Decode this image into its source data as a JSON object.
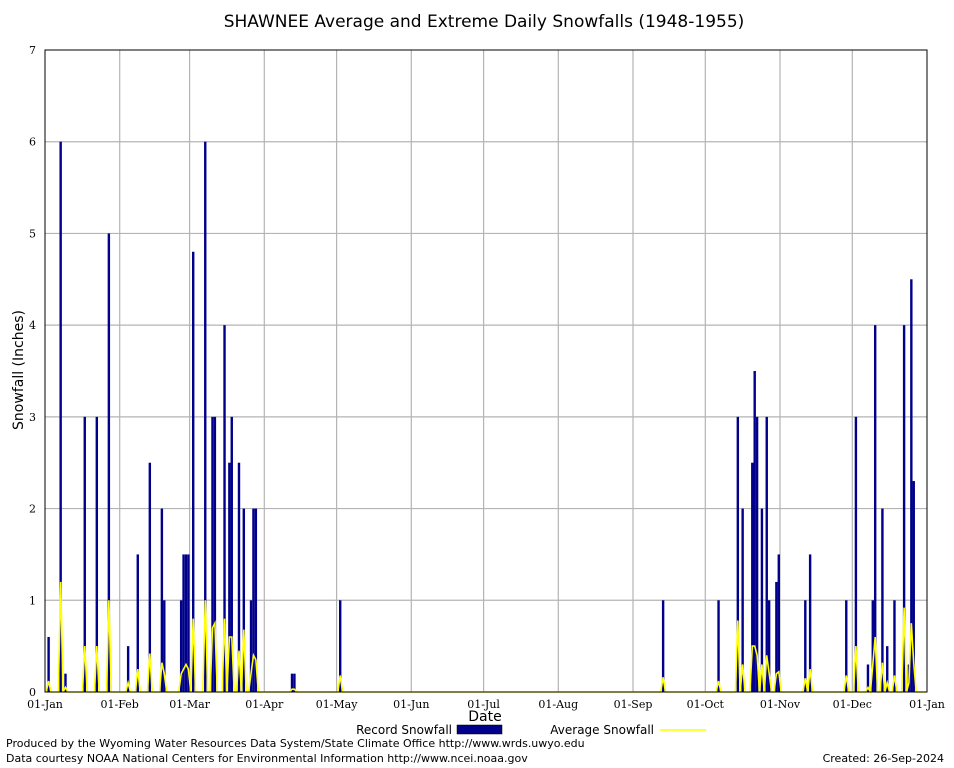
{
  "chart_data": {
    "type": "bar",
    "title": "SHAWNEE Average and Extreme Daily Snowfalls (1948-1955)",
    "xlabel": "Date",
    "ylabel": "Snowfall (Inches)",
    "ylim": [
      0,
      7
    ],
    "yticks": [
      "0",
      "1",
      "2",
      "3",
      "4",
      "5",
      "6",
      "7"
    ],
    "xlim_days": [
      1,
      366
    ],
    "xticks": [
      {
        "day": 1,
        "label": "01-Jan"
      },
      {
        "day": 32,
        "label": "01-Feb"
      },
      {
        "day": 61,
        "label": "01-Mar"
      },
      {
        "day": 92,
        "label": "01-Apr"
      },
      {
        "day": 122,
        "label": "01-May"
      },
      {
        "day": 153,
        "label": "01-Jun"
      },
      {
        "day": 183,
        "label": "01-Jul"
      },
      {
        "day": 214,
        "label": "01-Aug"
      },
      {
        "day": 245,
        "label": "01-Sep"
      },
      {
        "day": 275,
        "label": "01-Oct"
      },
      {
        "day": 306,
        "label": "01-Nov"
      },
      {
        "day": 336,
        "label": "01-Dec"
      },
      {
        "day": 367,
        "label": "01-Jan"
      }
    ],
    "grid": true,
    "legend_position": "bottom",
    "series": [
      {
        "name": "Record Snowfall",
        "style": "bar",
        "color": "#00008b",
        "points": [
          [
            2,
            0.6
          ],
          [
            7,
            6.0
          ],
          [
            9,
            0.2
          ],
          [
            17,
            3.0
          ],
          [
            22,
            3.0
          ],
          [
            27,
            5.0
          ],
          [
            35,
            0.5
          ],
          [
            39,
            1.5
          ],
          [
            44,
            2.5
          ],
          [
            49,
            2.0
          ],
          [
            50,
            1.0
          ],
          [
            57,
            1.0
          ],
          [
            58,
            1.5
          ],
          [
            59,
            1.5
          ],
          [
            60,
            1.5
          ],
          [
            62,
            4.8
          ],
          [
            67,
            6.0
          ],
          [
            70,
            3.0
          ],
          [
            71,
            3.0
          ],
          [
            75,
            4.0
          ],
          [
            77,
            2.5
          ],
          [
            78,
            3.0
          ],
          [
            81,
            2.5
          ],
          [
            83,
            2.0
          ],
          [
            86,
            1.0
          ],
          [
            87,
            2.0
          ],
          [
            88,
            2.0
          ],
          [
            103,
            0.2
          ],
          [
            104,
            0.2
          ],
          [
            123,
            1.0
          ],
          [
            257,
            1.0
          ],
          [
            280,
            1.0
          ],
          [
            288,
            3.0
          ],
          [
            290,
            2.0
          ],
          [
            294,
            2.5
          ],
          [
            295,
            3.5
          ],
          [
            296,
            3.0
          ],
          [
            298,
            2.0
          ],
          [
            300,
            3.0
          ],
          [
            301,
            1.0
          ],
          [
            304,
            1.2
          ],
          [
            305,
            1.5
          ],
          [
            316,
            1.0
          ],
          [
            318,
            1.5
          ],
          [
            333,
            1.0
          ],
          [
            337,
            3.0
          ],
          [
            342,
            0.3
          ],
          [
            344,
            1.0
          ],
          [
            345,
            4.0
          ],
          [
            348,
            2.0
          ],
          [
            350,
            0.5
          ],
          [
            353,
            1.0
          ],
          [
            357,
            4.0
          ],
          [
            359,
            0.3
          ],
          [
            360,
            4.5
          ],
          [
            361,
            2.3
          ]
        ]
      },
      {
        "name": "Average Snowfall",
        "style": "line",
        "color": "#ffff00",
        "points": [
          [
            2,
            0.12
          ],
          [
            7,
            1.2
          ],
          [
            9,
            0.05
          ],
          [
            17,
            0.5
          ],
          [
            22,
            0.5
          ],
          [
            27,
            1.0
          ],
          [
            35,
            0.1
          ],
          [
            39,
            0.25
          ],
          [
            44,
            0.42
          ],
          [
            49,
            0.32
          ],
          [
            50,
            0.2
          ],
          [
            57,
            0.2
          ],
          [
            58,
            0.25
          ],
          [
            59,
            0.3
          ],
          [
            60,
            0.25
          ],
          [
            62,
            0.8
          ],
          [
            67,
            1.0
          ],
          [
            70,
            0.7
          ],
          [
            71,
            0.75
          ],
          [
            75,
            0.8
          ],
          [
            77,
            0.6
          ],
          [
            78,
            0.6
          ],
          [
            81,
            0.45
          ],
          [
            83,
            0.68
          ],
          [
            86,
            0.2
          ],
          [
            87,
            0.4
          ],
          [
            88,
            0.35
          ],
          [
            103,
            0.03
          ],
          [
            104,
            0.03
          ],
          [
            123,
            0.18
          ],
          [
            257,
            0.16
          ],
          [
            280,
            0.12
          ],
          [
            288,
            0.78
          ],
          [
            290,
            0.3
          ],
          [
            294,
            0.5
          ],
          [
            295,
            0.5
          ],
          [
            296,
            0.4
          ],
          [
            298,
            0.3
          ],
          [
            300,
            0.4
          ],
          [
            301,
            0.2
          ],
          [
            304,
            0.2
          ],
          [
            305,
            0.22
          ],
          [
            316,
            0.15
          ],
          [
            318,
            0.25
          ],
          [
            333,
            0.18
          ],
          [
            337,
            0.5
          ],
          [
            342,
            0.05
          ],
          [
            344,
            0.3
          ],
          [
            345,
            0.6
          ],
          [
            348,
            0.32
          ],
          [
            350,
            0.1
          ],
          [
            353,
            0.18
          ],
          [
            357,
            0.92
          ],
          [
            359,
            0.1
          ],
          [
            360,
            0.75
          ],
          [
            361,
            0.32
          ]
        ]
      }
    ]
  },
  "footer": {
    "produced_by": "Produced by the Wyoming Water Resources Data System/State Climate Office http://www.wrds.uwyo.edu",
    "courtesy": "Data courtesy NOAA National Centers for Environmental Information http://www.ncei.noaa.gov",
    "created": "Created:  26-Sep-2024"
  }
}
